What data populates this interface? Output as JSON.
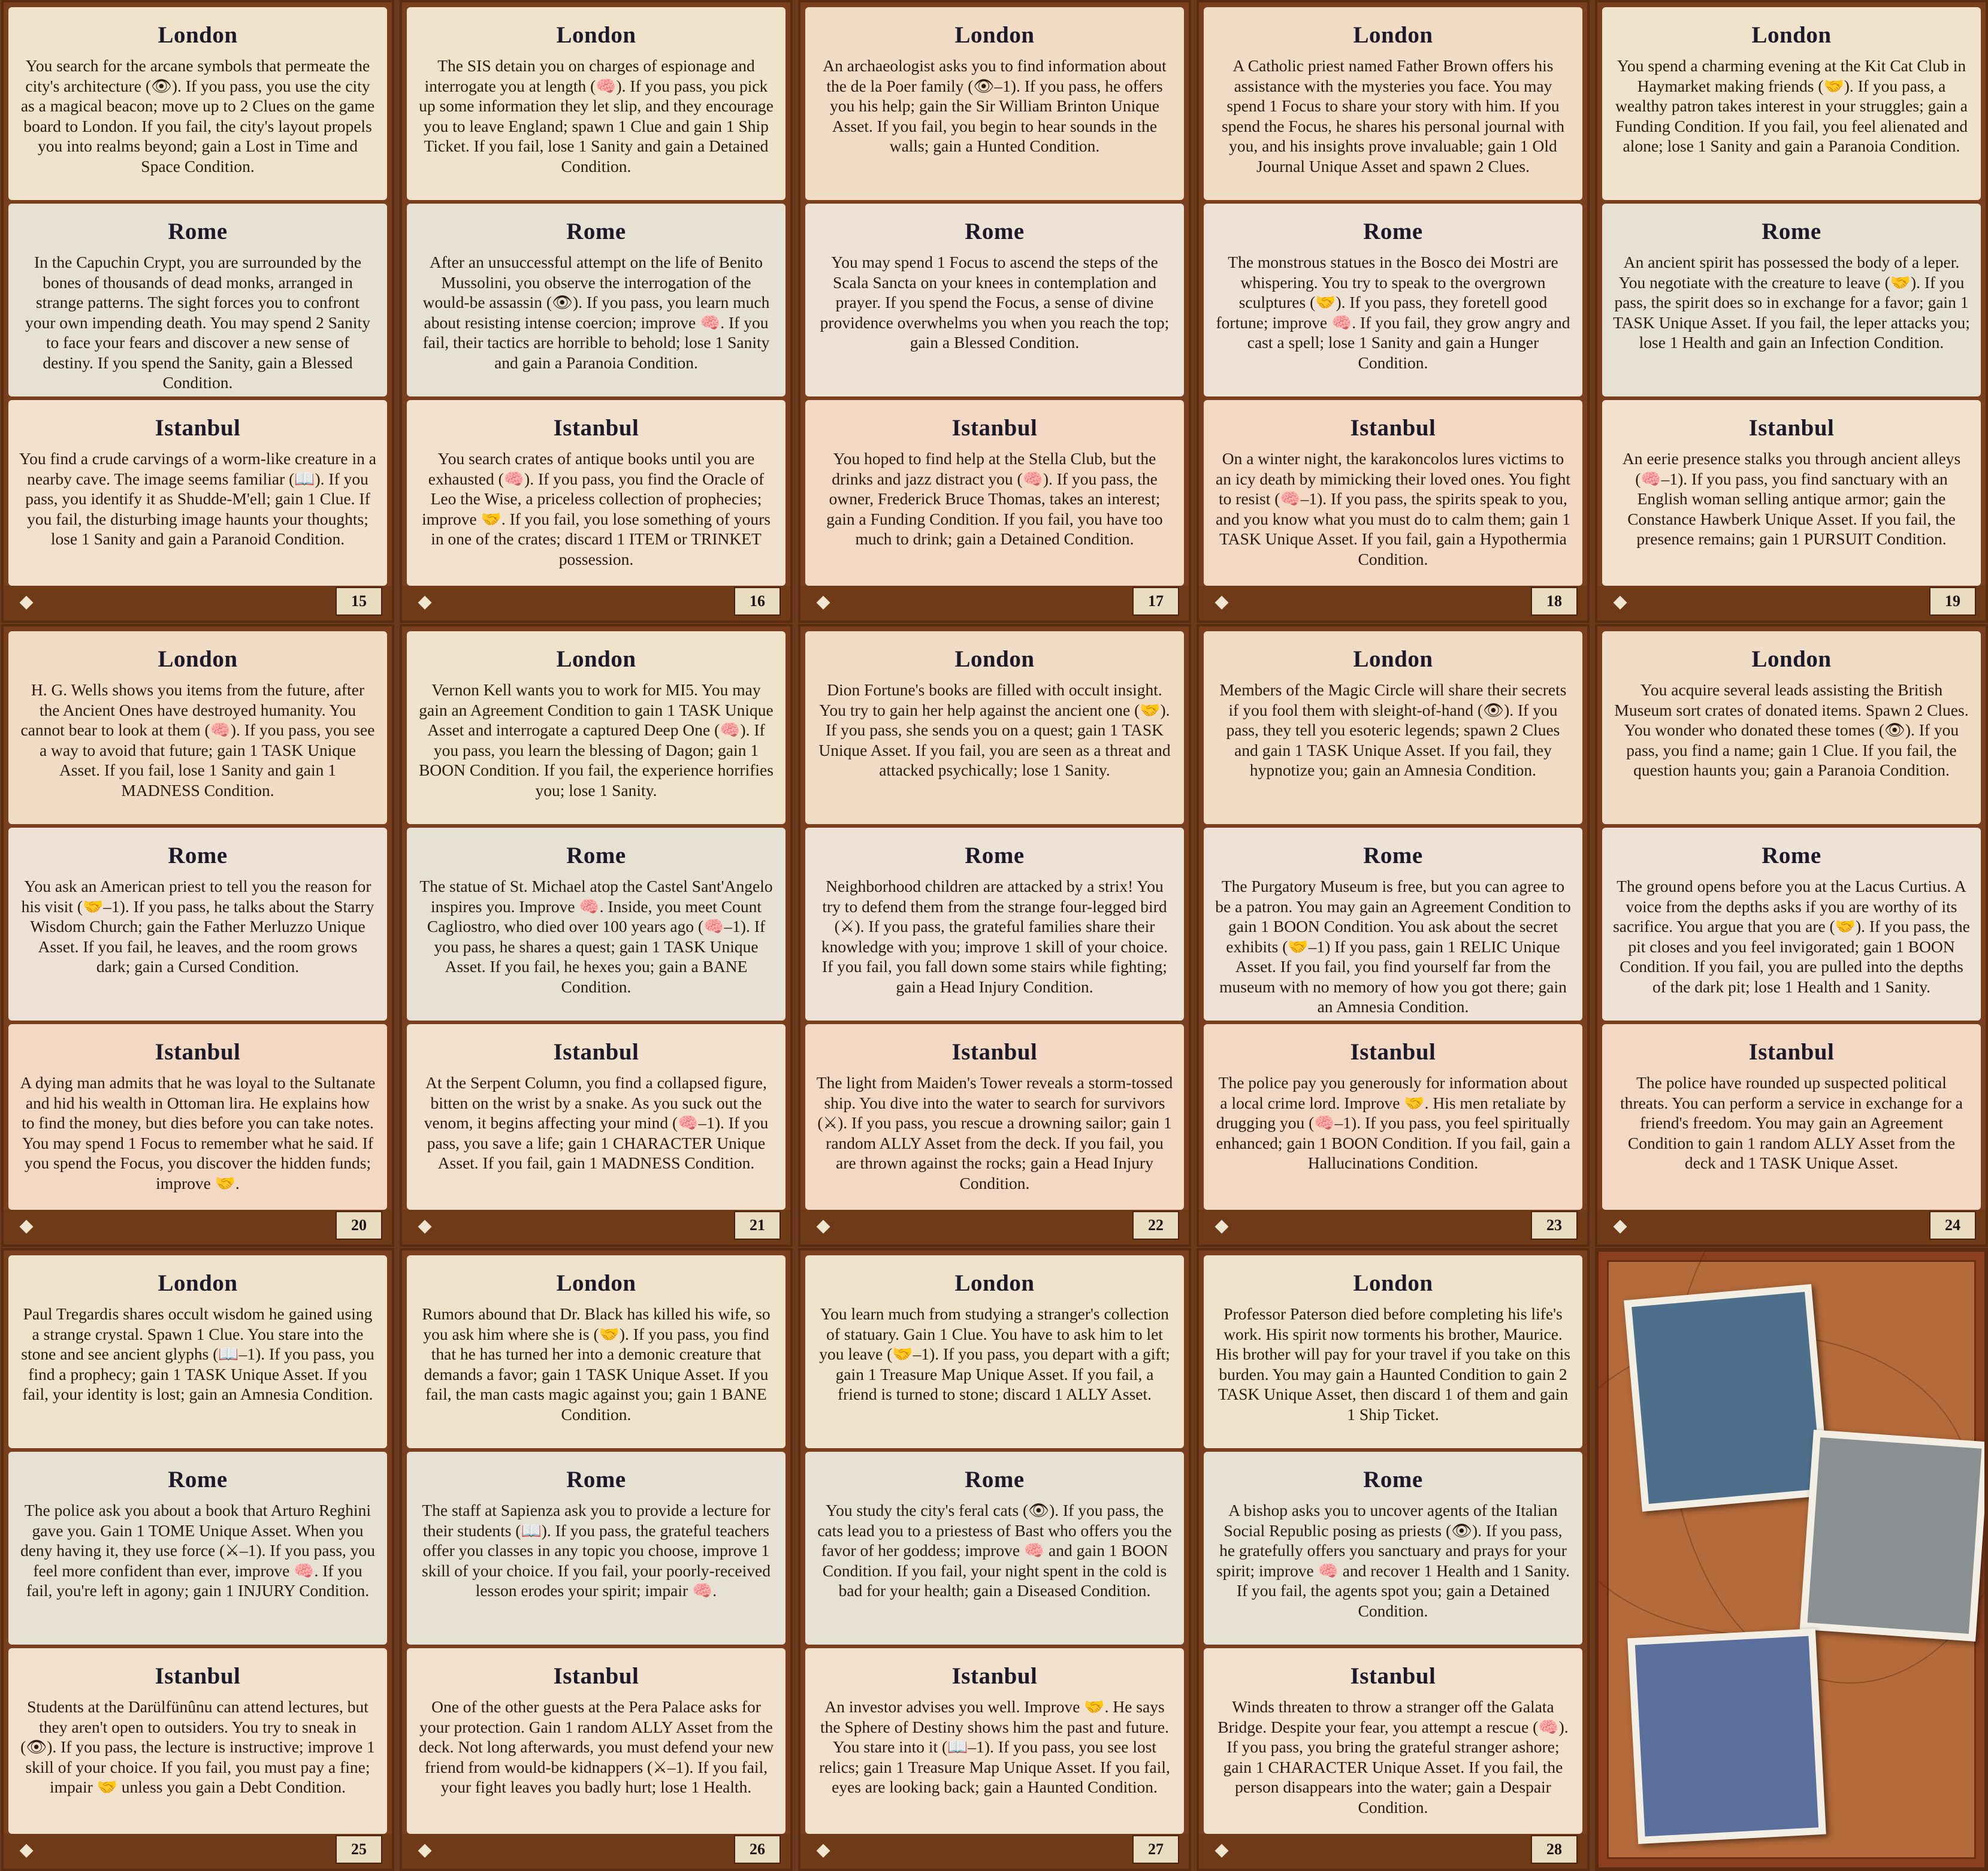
{
  "cards": [
    {
      "number": "15",
      "tone": "cream",
      "sections": [
        {
          "title": "London",
          "text": "You search for the arcane symbols that permeate the city's architecture (👁). If you pass, you use the city as a magical beacon; move up to 2 Clues on the game board to London. If you fail, the city's layout propels you into realms beyond; gain a Lost in Time and Space Condition."
        },
        {
          "title": "Rome",
          "text": "In the Capuchin Crypt, you are surrounded by the bones of thousands of dead monks, arranged in strange patterns. The sight forces you to confront your own impending death. You may spend 2 Sanity to face your fears and discover a new sense of destiny. If you spend the Sanity, gain a Blessed Condition."
        },
        {
          "title": "Istanbul",
          "text": "You find a crude carvings of a worm-like creature in a nearby cave. The image seems familiar (📖). If you pass, you identify it as Shudde-M'ell; gain 1 Clue. If you fail, the disturbing image haunts your thoughts; lose 1 Sanity and gain a Paranoid Condition."
        }
      ]
    },
    {
      "number": "16",
      "tone": "cream",
      "sections": [
        {
          "title": "London",
          "text": "The SIS detain you on charges of espionage and interrogate you at length (🧠). If you pass, you pick up some information they let slip, and they encourage you to leave England; spawn 1 Clue and gain 1 Ship Ticket. If you fail, lose 1 Sanity and gain a Detained Condition."
        },
        {
          "title": "Rome",
          "text": "After an unsuccessful attempt on the life of Benito Mussolini, you observe the interrogation of the would-be assassin (👁). If you pass, you learn much about resisting intense coercion; improve 🧠. If you fail, their tactics are horrible to behold; lose 1 Sanity and gain a Paranoia Condition."
        },
        {
          "title": "Istanbul",
          "text": "You search crates of antique books until you are exhausted (🧠). If you pass, you find the Oracle of Leo the Wise, a priceless collection of prophecies; improve 🤝. If you fail, you lose something of yours in one of the crates; discard 1 ITEM or TRINKET possession."
        }
      ]
    },
    {
      "number": "17",
      "tone": "pink",
      "sections": [
        {
          "title": "London",
          "text": "An archaeologist asks you to find information about the de la Poer family (👁–1). If you pass, he offers you his help; gain the Sir William Brinton Unique Asset. If you fail, you begin to hear sounds in the walls; gain a Hunted Condition."
        },
        {
          "title": "Rome",
          "text": "You may spend 1 Focus to ascend the steps of the Scala Sancta on your knees in contemplation and prayer. If you spend the Focus, a sense of divine providence overwhelms you when you reach the top; gain a Blessed Condition."
        },
        {
          "title": "Istanbul",
          "text": "You hoped to find help at the Stella Club, but the drinks and jazz distract you (🧠). If you pass, the owner, Frederick Bruce Thomas, takes an interest; gain a Funding Condition. If you fail, you have too much to drink; gain a Detained Condition."
        }
      ]
    },
    {
      "number": "18",
      "tone": "pink",
      "sections": [
        {
          "title": "London",
          "text": "A Catholic priest named Father Brown offers his assistance with the mysteries you face. You may spend 1 Focus to share your story with him. If you spend the Focus, he shares his personal journal with you, and his insights prove invaluable; gain 1 Old Journal Unique Asset and spawn 2 Clues."
        },
        {
          "title": "Rome",
          "text": "The monstrous statues in the Bosco dei Mostri are whispering. You try to speak to the overgrown sculptures (🤝). If you pass, they foretell good fortune; improve 🧠. If you fail, they grow angry and cast a spell; lose 1 Sanity and gain a Hunger Condition."
        },
        {
          "title": "Istanbul",
          "text": "On a winter night, the karakoncolos lures victims to an icy death by mimicking their loved ones. You fight to resist (🧠–1). If you pass, the spirits speak to you, and you know what you must do to calm them; gain 1 TASK Unique Asset. If you fail, gain a Hypothermia Condition."
        }
      ]
    },
    {
      "number": "19",
      "tone": "cream",
      "sections": [
        {
          "title": "London",
          "text": "You spend a charming evening at the Kit Cat Club in Haymarket making friends (🤝). If you pass, a wealthy patron takes interest in your struggles; gain a Funding Condition. If you fail, you feel alienated and alone; lose 1 Sanity and gain a Paranoia Condition."
        },
        {
          "title": "Rome",
          "text": "An ancient spirit has possessed the body of a leper. You negotiate with the creature to leave (🤝). If you pass, the spirit does so in exchange for a favor; gain 1 TASK Unique Asset. If you fail, the leper attacks you; lose 1 Health and gain an Infection Condition."
        },
        {
          "title": "Istanbul",
          "text": "An eerie presence stalks you through ancient alleys (🧠–1). If you pass, you find sanctuary with an English woman selling antique armor; gain the Constance Hawberk Unique Asset. If you fail, the presence remains; gain 1 PURSUIT Condition."
        }
      ]
    },
    {
      "number": "20",
      "tone": "pink",
      "sections": [
        {
          "title": "London",
          "text": "H. G. Wells shows you items from the future, after the Ancient Ones have destroyed humanity. You cannot bear to look at them (🧠). If you pass, you see a way to avoid that future; gain 1 TASK Unique Asset. If you fail, lose 1 Sanity and gain 1 MADNESS Condition."
        },
        {
          "title": "Rome",
          "text": "You ask an American priest to tell you the reason for his visit (🤝–1). If you pass, he talks about the Starry Wisdom Church; gain the Father Merluzzo Unique Asset. If you fail, he leaves, and the room grows dark; gain a Cursed Condition."
        },
        {
          "title": "Istanbul",
          "text": "A dying man admits that he was loyal to the Sultanate and hid his wealth in Ottoman lira. He explains how to find the money, but dies before you can take notes. You may spend 1 Focus to remember what he said. If you spend the Focus, you discover the hidden funds; improve 🤝."
        }
      ]
    },
    {
      "number": "21",
      "tone": "cream",
      "sections": [
        {
          "title": "London",
          "text": "Vernon Kell wants you to work for MI5. You may gain an Agreement Condition to gain 1 TASK Unique Asset and interrogate a captured Deep One (🧠). If you pass, you learn the blessing of Dagon; gain 1 BOON Condition. If you fail, the experience horrifies you; lose 1 Sanity."
        },
        {
          "title": "Rome",
          "text": "The statue of St. Michael atop the Castel Sant'Angelo inspires you. Improve 🧠. Inside, you meet Count Cagliostro, who died over 100 years ago (🧠–1). If you pass, he shares a quest; gain 1 TASK Unique Asset. If you fail, he hexes you; gain a BANE Condition."
        },
        {
          "title": "Istanbul",
          "text": "At the Serpent Column, you find a collapsed figure, bitten on the wrist by a snake. As you suck out the venom, it begins affecting your mind (🧠–1). If you pass, you save a life; gain 1 CHARACTER Unique Asset. If you fail, gain 1 MADNESS Condition."
        }
      ]
    },
    {
      "number": "22",
      "tone": "pink",
      "sections": [
        {
          "title": "London",
          "text": "Dion Fortune's books are filled with occult insight. You try to gain her help against the ancient one (🤝). If you pass, she sends you on a quest; gain 1 TASK Unique Asset. If you fail, you are seen as a threat and attacked psychically; lose 1 Sanity."
        },
        {
          "title": "Rome",
          "text": "Neighborhood children are attacked by a strix! You try to defend them from the strange four-legged bird (⚔). If you pass, the grateful families share their knowledge with you; improve 1 skill of your choice. If you fail, you fall down some stairs while fighting; gain a Head Injury Condition."
        },
        {
          "title": "Istanbul",
          "text": "The light from Maiden's Tower reveals a storm-tossed ship. You dive into the water to search for survivors (⚔). If you pass, you rescue a drowning sailor; gain 1 random ALLY Asset from the deck. If you fail, you are thrown against the rocks; gain a Head Injury Condition."
        }
      ]
    },
    {
      "number": "23",
      "tone": "pink",
      "sections": [
        {
          "title": "London",
          "text": "Members of the Magic Circle will share their secrets if you fool them with sleight-of-hand (👁). If you pass, they tell you esoteric legends; spawn 2 Clues and gain 1 TASK Unique Asset. If you fail, they hypnotize you; gain an Amnesia Condition."
        },
        {
          "title": "Rome",
          "text": "The Purgatory Museum is free, but you can agree to be a patron. You may gain an Agreement Condition to gain 1 BOON Condition. You ask about the secret exhibits (🤝–1) If you pass, gain 1 RELIC Unique Asset. If you fail, you find yourself far from the museum with no memory of how you got there; gain an Amnesia Condition."
        },
        {
          "title": "Istanbul",
          "text": "The police pay you generously for information about a local crime lord. Improve 🤝. His men retaliate by drugging you (🧠–1). If you pass, you feel spiritually enhanced; gain 1 BOON Condition. If you fail, gain a Hallucinations Condition."
        }
      ]
    },
    {
      "number": "24",
      "tone": "pink",
      "sections": [
        {
          "title": "London",
          "text": "You acquire several leads assisting the British Museum sort crates of donated items. Spawn 2 Clues. You wonder who donated these tomes (👁). If you pass, you find a name; gain 1 Clue. If you fail, the question haunts you; gain a Paranoia Condition."
        },
        {
          "title": "Rome",
          "text": "The ground opens before you at the Lacus Curtius. A voice from the depths asks if you are worthy of its sacrifice. You argue that you are (🤝). If you pass, the pit closes and you feel invigorated; gain 1 BOON Condition. If you fail, you are pulled into the depths of the dark pit; lose 1 Health and 1 Sanity."
        },
        {
          "title": "Istanbul",
          "text": "The police have rounded up suspected political threats. You can perform a service in exchange for a friend's freedom. You may gain an Agreement Condition to gain 1 random ALLY Asset from the deck and 1 TASK Unique Asset."
        }
      ]
    },
    {
      "number": "25",
      "tone": "cream",
      "sections": [
        {
          "title": "London",
          "text": "Paul Tregardis shares occult wisdom he gained using a strange crystal. Spawn 1 Clue. You stare into the stone and see ancient glyphs (📖–1). If you pass, you find a prophecy; gain 1 TASK Unique Asset. If you fail, your identity is lost; gain an Amnesia Condition."
        },
        {
          "title": "Rome",
          "text": "The police ask you about a book that Arturo Reghini gave you. Gain 1 TOME Unique Asset. When you deny having it, they use force (⚔–1). If you pass, you feel more confident than ever, improve 🧠. If you fail, you're left in agony; gain 1 INJURY Condition."
        },
        {
          "title": "Istanbul",
          "text": "Students at the Darülfünûnu can attend lectures, but they aren't open to outsiders. You try to sneak in (👁). If you pass, the lecture is instructive; improve 1 skill of your choice. If you fail, you must pay a fine; impair 🤝 unless you gain a Debt Condition."
        }
      ]
    },
    {
      "number": "26",
      "tone": "cream",
      "sections": [
        {
          "title": "London",
          "text": "Rumors abound that Dr. Black has killed his wife, so you ask him where she is (🤝). If you pass, you find that he has turned her into a demonic creature that demands a favor; gain 1 TASK Unique Asset. If you fail, the man casts magic against you; gain 1 BANE Condition."
        },
        {
          "title": "Rome",
          "text": "The staff at Sapienza ask you to provide a lecture for their students (📖). If you pass, the grateful teachers offer you classes in any topic you choose, improve 1 skill of your choice. If you fail, your poorly-received lesson erodes your spirit; impair 🧠."
        },
        {
          "title": "Istanbul",
          "text": "One of the other guests at the Pera Palace asks for your protection. Gain 1 random ALLY Asset from the deck. Not long afterwards, you must defend your new friend from would-be kidnappers (⚔–1). If you fail, your fight leaves you badly hurt; lose 1 Health."
        }
      ]
    },
    {
      "number": "27",
      "tone": "cream",
      "sections": [
        {
          "title": "London",
          "text": "You learn much from studying a stranger's collection of statuary. Gain 1 Clue. You have to ask him to let you leave (🤝–1). If you pass, you depart with a gift; gain 1 Treasure Map Unique Asset. If you fail, a friend is turned to stone; discard 1 ALLY Asset."
        },
        {
          "title": "Rome",
          "text": "You study the city's feral cats (👁). If you pass, the cats lead you to a priestess of Bast who offers you the favor of her goddess; improve 🧠 and gain 1 BOON Condition. If you fail, your night spent in the cold is bad for your health; gain a Diseased Condition."
        },
        {
          "title": "Istanbul",
          "text": "An investor advises you well. Improve 🤝. He says the Sphere of Destiny shows him the past and future. You stare into it (📖–1). If you pass, you see lost relics; gain 1 Treasure Map Unique Asset. If you fail, eyes are looking back; gain a Haunted Condition."
        }
      ]
    },
    {
      "number": "28",
      "tone": "cream",
      "sections": [
        {
          "title": "London",
          "text": "Professor Paterson died before completing his life's work. His spirit now torments his brother, Maurice. His brother will pay for your travel if you take on this burden. You may gain a Haunted Condition to gain 2 TASK Unique Asset, then discard 1 of them and gain 1 Ship Ticket."
        },
        {
          "title": "Rome",
          "text": "A bishop asks you to uncover agents of the Italian Social Republic posing as priests (👁). If you pass, he gratefully offers you sanctuary and prays for your spirit; improve 🧠 and recover 1 Health and 1 Sanity. If you fail, the agents spot you; gain a Detained Condition."
        },
        {
          "title": "Istanbul",
          "text": "Winds threaten to throw a stranger off the Galata Bridge. Despite your fear, you attempt a rescue (🧠). If you pass, you bring the grateful stranger ashore; gain 1 CHARACTER Unique Asset. If you fail, the person disappears into the water; gain a Despair Condition."
        }
      ]
    }
  ],
  "colors": {
    "frame": "#7a3f1f",
    "parchment": "#efe4cb",
    "text": "#2a1a10"
  }
}
